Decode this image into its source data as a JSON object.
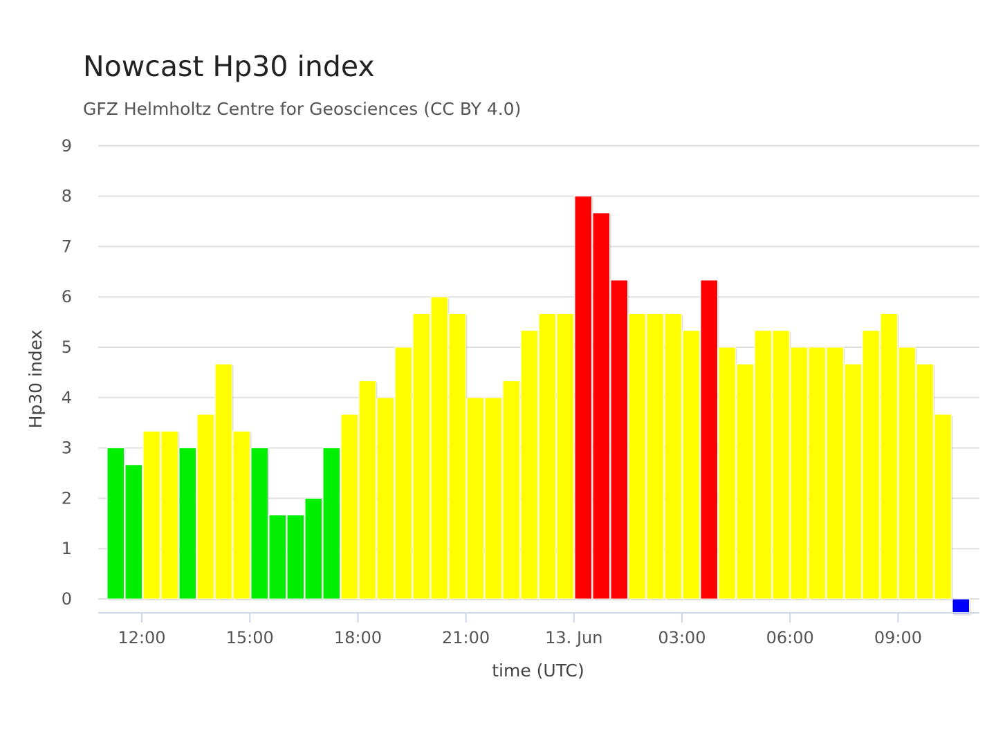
{
  "chart_data": {
    "type": "bar",
    "title": "Nowcast Hp30 index",
    "subtitle": "GFZ Helmholtz Centre for Geosciences (CC BY 4.0)",
    "xlabel": "time (UTC)",
    "ylabel": "Hp30 index",
    "ylim": [
      0,
      9
    ],
    "yticks": [
      0,
      1,
      2,
      3,
      4,
      5,
      6,
      7,
      8,
      9
    ],
    "xticks": [
      {
        "label": "12:00",
        "time": "12 Jun 12:00"
      },
      {
        "label": "15:00",
        "time": "12 Jun 15:00"
      },
      {
        "label": "18:00",
        "time": "12 Jun 18:00"
      },
      {
        "label": "21:00",
        "time": "12 Jun 21:00"
      },
      {
        "label": "13. Jun",
        "time": "13 Jun 00:00"
      },
      {
        "label": "03:00",
        "time": "13 Jun 03:00"
      },
      {
        "label": "06:00",
        "time": "13 Jun 06:00"
      },
      {
        "label": "09:00",
        "time": "13 Jun 09:00"
      }
    ],
    "grid": true,
    "legend": "none",
    "colors": {
      "green": "#00ee00",
      "yellow": "#ffff00",
      "red": "#ff0000",
      "blue": "#0000ff",
      "grid": "#e0e0e0",
      "axis": "#ccd6eb"
    },
    "bars": [
      {
        "time": "12 Jun 11:30",
        "value": 3.0,
        "color": "green"
      },
      {
        "time": "12 Jun 12:00",
        "value": 2.667,
        "color": "green"
      },
      {
        "time": "12 Jun 12:30",
        "value": 3.333,
        "color": "yellow"
      },
      {
        "time": "12 Jun 13:00",
        "value": 3.333,
        "color": "yellow"
      },
      {
        "time": "12 Jun 13:30",
        "value": 3.0,
        "color": "green"
      },
      {
        "time": "12 Jun 14:00",
        "value": 3.667,
        "color": "yellow"
      },
      {
        "time": "12 Jun 14:30",
        "value": 4.667,
        "color": "yellow"
      },
      {
        "time": "12 Jun 15:00",
        "value": 3.333,
        "color": "yellow"
      },
      {
        "time": "12 Jun 15:30",
        "value": 3.0,
        "color": "green"
      },
      {
        "time": "12 Jun 16:00",
        "value": 1.667,
        "color": "green"
      },
      {
        "time": "12 Jun 16:30",
        "value": 1.667,
        "color": "green"
      },
      {
        "time": "12 Jun 17:00",
        "value": 2.0,
        "color": "green"
      },
      {
        "time": "12 Jun 17:30",
        "value": 3.0,
        "color": "green"
      },
      {
        "time": "12 Jun 18:00",
        "value": 3.667,
        "color": "yellow"
      },
      {
        "time": "12 Jun 18:30",
        "value": 4.333,
        "color": "yellow"
      },
      {
        "time": "12 Jun 19:00",
        "value": 4.0,
        "color": "yellow"
      },
      {
        "time": "12 Jun 19:30",
        "value": 5.0,
        "color": "yellow"
      },
      {
        "time": "12 Jun 20:00",
        "value": 5.667,
        "color": "yellow"
      },
      {
        "time": "12 Jun 20:30",
        "value": 6.0,
        "color": "yellow"
      },
      {
        "time": "12 Jun 21:00",
        "value": 5.667,
        "color": "yellow"
      },
      {
        "time": "12 Jun 21:30",
        "value": 4.0,
        "color": "yellow"
      },
      {
        "time": "12 Jun 22:00",
        "value": 4.0,
        "color": "yellow"
      },
      {
        "time": "12 Jun 22:30",
        "value": 4.333,
        "color": "yellow"
      },
      {
        "time": "12 Jun 23:00",
        "value": 5.333,
        "color": "yellow"
      },
      {
        "time": "12 Jun 23:30",
        "value": 5.667,
        "color": "yellow"
      },
      {
        "time": "13 Jun 00:00",
        "value": 5.667,
        "color": "yellow"
      },
      {
        "time": "13 Jun 00:30",
        "value": 8.0,
        "color": "red"
      },
      {
        "time": "13 Jun 01:00",
        "value": 7.667,
        "color": "red"
      },
      {
        "time": "13 Jun 01:30",
        "value": 6.333,
        "color": "red"
      },
      {
        "time": "13 Jun 02:00",
        "value": 5.667,
        "color": "yellow"
      },
      {
        "time": "13 Jun 02:30",
        "value": 5.667,
        "color": "yellow"
      },
      {
        "time": "13 Jun 03:00",
        "value": 5.667,
        "color": "yellow"
      },
      {
        "time": "13 Jun 03:30",
        "value": 5.333,
        "color": "yellow"
      },
      {
        "time": "13 Jun 04:00",
        "value": 6.333,
        "color": "red"
      },
      {
        "time": "13 Jun 04:30",
        "value": 5.0,
        "color": "yellow"
      },
      {
        "time": "13 Jun 05:00",
        "value": 4.667,
        "color": "yellow"
      },
      {
        "time": "13 Jun 05:30",
        "value": 5.333,
        "color": "yellow"
      },
      {
        "time": "13 Jun 06:00",
        "value": 5.333,
        "color": "yellow"
      },
      {
        "time": "13 Jun 06:30",
        "value": 5.0,
        "color": "yellow"
      },
      {
        "time": "13 Jun 07:00",
        "value": 5.0,
        "color": "yellow"
      },
      {
        "time": "13 Jun 07:30",
        "value": 5.0,
        "color": "yellow"
      },
      {
        "time": "13 Jun 08:00",
        "value": 4.667,
        "color": "yellow"
      },
      {
        "time": "13 Jun 08:30",
        "value": 5.333,
        "color": "yellow"
      },
      {
        "time": "13 Jun 09:00",
        "value": 5.667,
        "color": "yellow"
      },
      {
        "time": "13 Jun 09:30",
        "value": 5.0,
        "color": "yellow"
      },
      {
        "time": "13 Jun 10:00",
        "value": 4.667,
        "color": "yellow"
      },
      {
        "time": "13 Jun 10:30",
        "value": 3.667,
        "color": "yellow"
      },
      {
        "time": "13 Jun 11:00",
        "value": -0.3,
        "color": "blue"
      }
    ]
  }
}
